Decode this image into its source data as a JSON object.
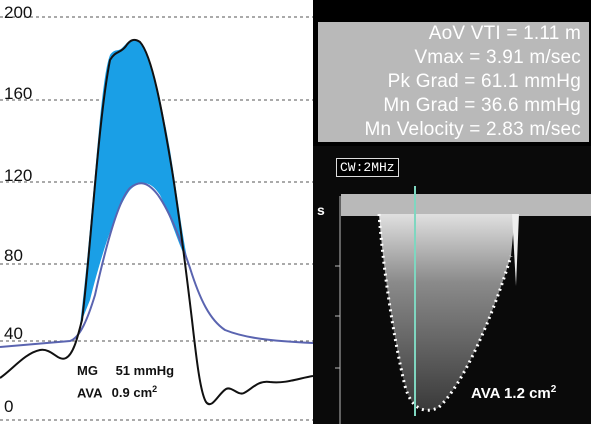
{
  "left_panel": {
    "y_ticks": [
      "200",
      "160",
      "120",
      "80",
      "40",
      "0"
    ],
    "note": {
      "mg_label": "MG",
      "mg_value": "51 mmHg",
      "ava_label": "AVA",
      "ava_value": "0.9 cm",
      "ava_unit_sup": "2"
    },
    "colors": {
      "fill": "#1a9fe6",
      "lv_pressure": "#111111",
      "ao_pressure": "#5a64b0",
      "grid": "#555555"
    }
  },
  "right_panel": {
    "measurements": [
      "AoV VTI = 1.11 m",
      "Vmax = 3.91 m/sec",
      "Pk Grad = 61.1 mmHg",
      "Mn Grad = 36.6 mmHg",
      "Mn Velocity = 2.83 m/sec"
    ],
    "mode_label": "CW:2MHz",
    "scale_marker": "s",
    "ava_label": "AVA 1.2 cm",
    "ava_unit_sup": "2",
    "colors": {
      "measure_box": "#b9b9b9",
      "trace": "#ffffff",
      "cursor": "#7fd6c0"
    }
  }
}
